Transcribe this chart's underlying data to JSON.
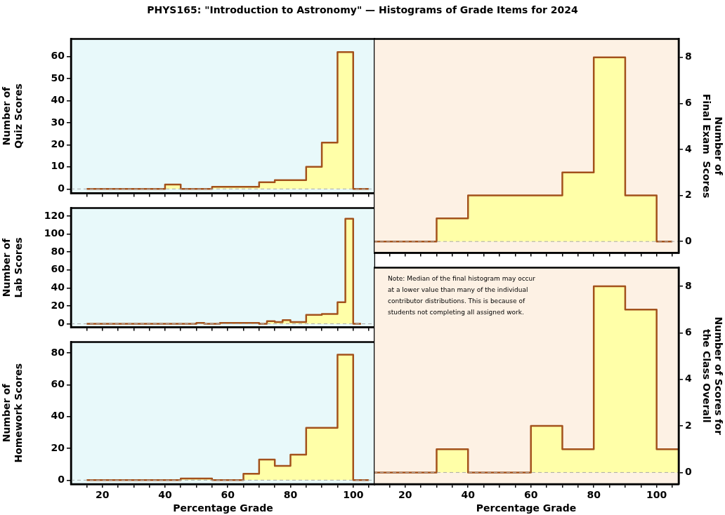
{
  "chart_data": [
    {
      "type": "histogram",
      "title": "PHYS165: \"Introduction to Astronomy\"  —  Histograms of Grade Items for 2024",
      "ylabel": "Number of\nQuiz Scores",
      "tick_labels": "y",
      "bins": [
        15,
        20,
        25,
        30,
        35,
        40,
        45,
        50,
        55,
        60,
        65,
        70,
        75,
        80,
        85,
        90,
        95,
        100,
        105
      ],
      "series": [
        {
          "color": "#ffffa8",
          "values": [
            0,
            0,
            0,
            0,
            0,
            2,
            0,
            0,
            1,
            1,
            1,
            3,
            4,
            4,
            10,
            21,
            62,
            0
          ]
        }
      ],
      "xlim": [
        10,
        107
      ],
      "xticks": [
        {
          "value": 15,
          "label": null
        },
        20,
        {
          "value": 25,
          "label": null
        },
        {
          "value": 30,
          "label": null
        },
        {
          "value": 35,
          "label": null
        },
        40,
        {
          "value": 45,
          "label": null
        },
        {
          "value": 50,
          "label": null
        },
        {
          "value": 55,
          "label": null
        },
        60,
        {
          "value": 65,
          "label": null
        },
        {
          "value": 70,
          "label": null
        },
        {
          "value": 75,
          "label": null
        },
        80,
        {
          "value": 85,
          "label": null
        },
        {
          "value": 90,
          "label": null
        },
        {
          "value": 95,
          "label": null
        },
        100,
        {
          "value": 105,
          "label": null
        }
      ],
      "ylim": [
        -2,
        68
      ],
      "yticks": [
        0,
        10,
        20,
        30,
        40,
        50,
        60
      ],
      "ref_lines": [
        {
          "axis": "y",
          "value": 0,
          "color": "#aaaaaa",
          "line_style": "dashed"
        }
      ]
    },
    {
      "type": "histogram",
      "ylabel": "Number of\nLab Scores",
      "tick_labels": "y",
      "bins": [
        15,
        17.5,
        20,
        22.5,
        25,
        27.5,
        30,
        32.5,
        35,
        37.5,
        40,
        42.5,
        45,
        47.5,
        50,
        52.5,
        55,
        57.5,
        60,
        62.5,
        65,
        67.5,
        70,
        72.5,
        75,
        77.5,
        80,
        82.5,
        85,
        87.5,
        90,
        92.5,
        95,
        97.5,
        100,
        102.5
      ],
      "series": [
        {
          "color": "#ffffa8",
          "values": [
            0,
            0,
            0,
            0,
            0,
            0,
            0,
            0,
            0,
            0,
            0,
            0,
            0,
            0,
            1,
            0,
            0,
            1,
            1,
            1,
            1,
            1,
            0,
            3,
            2,
            4,
            2,
            2,
            10,
            10,
            11,
            11,
            24,
            117,
            0
          ]
        }
      ],
      "xlim": [
        10,
        107
      ],
      "xticks": [
        {
          "value": 15,
          "label": null
        },
        20,
        {
          "value": 25,
          "label": null
        },
        {
          "value": 30,
          "label": null
        },
        {
          "value": 35,
          "label": null
        },
        40,
        {
          "value": 45,
          "label": null
        },
        {
          "value": 50,
          "label": null
        },
        {
          "value": 55,
          "label": null
        },
        60,
        {
          "value": 65,
          "label": null
        },
        {
          "value": 70,
          "label": null
        },
        {
          "value": 75,
          "label": null
        },
        80,
        {
          "value": 85,
          "label": null
        },
        {
          "value": 90,
          "label": null
        },
        {
          "value": 95,
          "label": null
        },
        100,
        {
          "value": 105,
          "label": null
        }
      ],
      "ylim": [
        -4,
        129
      ],
      "yticks": [
        0,
        20,
        40,
        60,
        80,
        100,
        120
      ],
      "ref_lines": [
        {
          "axis": "y",
          "value": 0,
          "color": "#aaaaaa",
          "line_style": "dashed"
        }
      ]
    },
    {
      "type": "histogram",
      "xlabel": "Percentage Grade",
      "ylabel": "Number of\nHomework Scores",
      "bins": [
        15,
        20,
        25,
        30,
        35,
        40,
        45,
        50,
        55,
        60,
        65,
        70,
        75,
        80,
        85,
        90,
        95,
        100,
        105
      ],
      "series": [
        {
          "color": "#ffffa8",
          "values": [
            0,
            0,
            0,
            0,
            0,
            0,
            1,
            1,
            0,
            0,
            4,
            13,
            9,
            16,
            33,
            33,
            79,
            0
          ]
        }
      ],
      "xlim": [
        10,
        107
      ],
      "xticks": [
        {
          "value": 15,
          "label": null
        },
        20,
        {
          "value": 25,
          "label": null
        },
        {
          "value": 30,
          "label": null
        },
        {
          "value": 35,
          "label": null
        },
        40,
        {
          "value": 45,
          "label": null
        },
        {
          "value": 50,
          "label": null
        },
        {
          "value": 55,
          "label": null
        },
        60,
        {
          "value": 65,
          "label": null
        },
        {
          "value": 70,
          "label": null
        },
        {
          "value": 75,
          "label": null
        },
        80,
        {
          "value": 85,
          "label": null
        },
        {
          "value": 90,
          "label": null
        },
        {
          "value": 95,
          "label": null
        },
        100,
        {
          "value": 105,
          "label": null
        }
      ],
      "ylim": [
        -2.5,
        87
      ],
      "yticks": [
        0,
        20,
        40,
        60,
        80
      ],
      "ref_lines": [
        {
          "axis": "y",
          "value": 0,
          "color": "#aaaaaa",
          "line_style": "dashed"
        }
      ]
    },
    {
      "type": "histogram",
      "y2label": "Number of\nFinal Exam  Scores",
      "tick_labels": "y",
      "bins": [
        10,
        20,
        30,
        40,
        50,
        60,
        70,
        80,
        90,
        100,
        105
      ],
      "series": [
        {
          "color": "#ffffa8",
          "axis": "y2",
          "values": [
            0,
            0,
            1,
            2,
            2,
            2,
            3,
            8,
            2,
            0
          ]
        }
      ],
      "xlim": [
        10,
        107
      ],
      "xticks": [
        {
          "value": 15,
          "label": null
        },
        20,
        {
          "value": 25,
          "label": null
        },
        {
          "value": 30,
          "label": null
        },
        {
          "value": 35,
          "label": null
        },
        40,
        {
          "value": 45,
          "label": null
        },
        {
          "value": 50,
          "label": null
        },
        {
          "value": 55,
          "label": null
        },
        60,
        {
          "value": 65,
          "label": null
        },
        {
          "value": 70,
          "label": null
        },
        {
          "value": 75,
          "label": null
        },
        80,
        {
          "value": 85,
          "label": null
        },
        {
          "value": 90,
          "label": null
        },
        {
          "value": 95,
          "label": null
        },
        100,
        {
          "value": 105,
          "label": null
        }
      ],
      "y2lim": [
        -0.5,
        8.8
      ],
      "y2ticks": [
        0,
        2,
        4,
        6,
        8
      ],
      "ref_lines": [
        {
          "axis": "y2",
          "value": 0,
          "color": "#aaaaaa",
          "line_style": "dashed"
        }
      ]
    },
    {
      "type": "histogram",
      "xlabel": "Percentage Grade",
      "y2label": "Number of Scores for\nthe Class Overall",
      "bins": [
        10,
        20,
        30,
        40,
        50,
        60,
        70,
        80,
        90,
        100,
        107
      ],
      "series": [
        {
          "color": "#ffffa8",
          "axis": "y2",
          "values": [
            0,
            0,
            1,
            0,
            0,
            2,
            1,
            8,
            7,
            1
          ]
        }
      ],
      "xlim": [
        10,
        107
      ],
      "xticks": [
        {
          "value": 15,
          "label": null
        },
        20,
        {
          "value": 25,
          "label": null
        },
        {
          "value": 30,
          "label": null
        },
        {
          "value": 35,
          "label": null
        },
        40,
        {
          "value": 45,
          "label": null
        },
        {
          "value": 50,
          "label": null
        },
        {
          "value": 55,
          "label": null
        },
        60,
        {
          "value": 65,
          "label": null
        },
        {
          "value": 70,
          "label": null
        },
        {
          "value": 75,
          "label": null
        },
        80,
        {
          "value": 85,
          "label": null
        },
        {
          "value": 90,
          "label": null
        },
        {
          "value": 95,
          "label": null
        },
        100,
        {
          "value": 105,
          "label": null
        }
      ],
      "y2lim": [
        -0.5,
        8.8
      ],
      "y2ticks": [
        0,
        2,
        4,
        6,
        8
      ],
      "ref_lines": [
        {
          "axis": "y2",
          "value": 0,
          "color": "#aaaaaa",
          "line_style": "dashed"
        }
      ],
      "annotations": [
        "Note: Median of the final histogram may occur at a lower value than many of the individual contributor distributions. This is because of students not completing all assigned work."
      ]
    }
  ]
}
